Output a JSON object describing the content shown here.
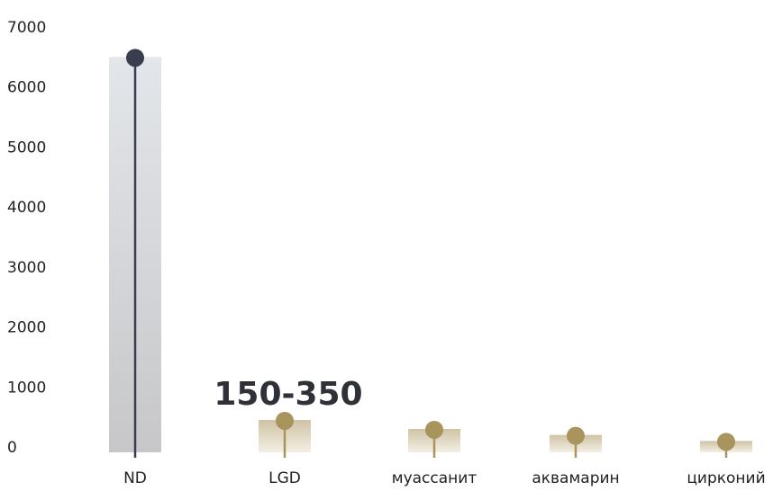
{
  "chart_data": {
    "type": "bar",
    "categories": [
      "ND",
      "LGD",
      "муассанит",
      "аквамарин",
      "цирконий"
    ],
    "values": [
      6500,
      450,
      300,
      200,
      100
    ],
    "ylim": [
      0,
      7000
    ],
    "yticks": [
      0,
      1000,
      2000,
      3000,
      4000,
      5000,
      6000,
      7000
    ],
    "annotation": {
      "category": "LGD",
      "text": "150-350"
    },
    "title": "",
    "xlabel": "",
    "ylabel": "",
    "grid": false,
    "colors": {
      "nd_bar_top": "#e3e6ea",
      "nd_bar_bottom": "#c7c7c9",
      "nd_marker": "#3a3d4d",
      "gold_bar_top": "#cfc3a4",
      "gold_bar_bottom": "#f3efe5",
      "gold_marker": "#a8945c",
      "annotation_text": "#2f3138"
    }
  }
}
